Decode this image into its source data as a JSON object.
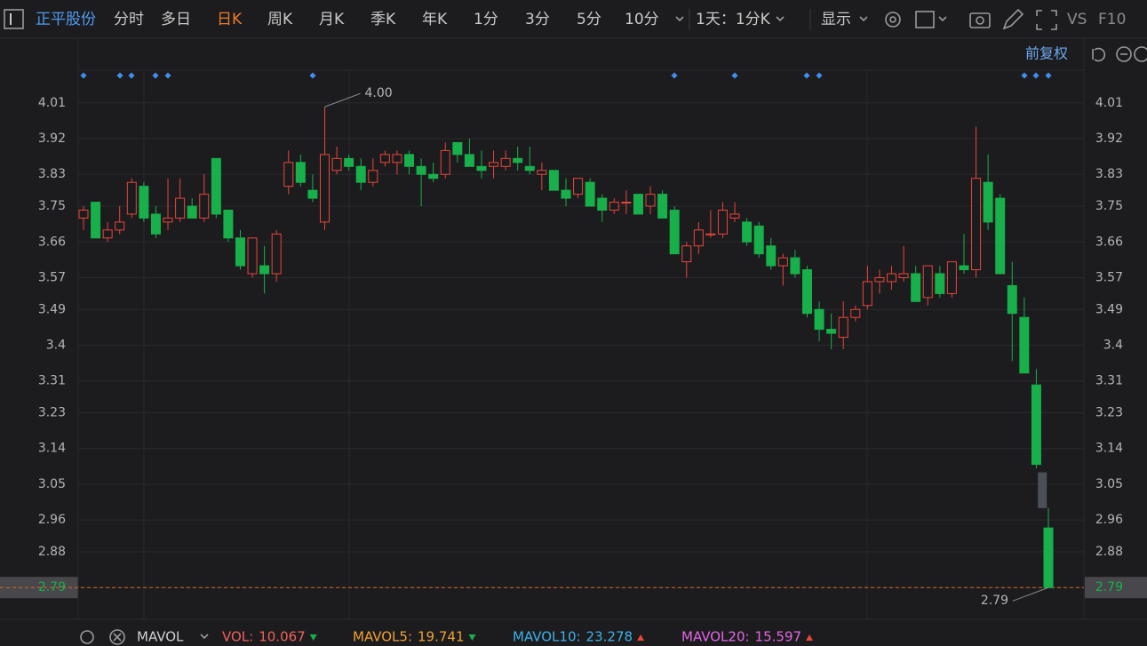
{
  "toolbar": {
    "stock_name": "正平股份",
    "items": [
      "分时",
      "多日",
      "日K",
      "周K",
      "月K",
      "季K",
      "年K",
      "1分",
      "3分",
      "5分",
      "10分"
    ],
    "active_index": 2,
    "period": "1天：1分K",
    "display": "显示",
    "vs": "VS",
    "f10": "F10",
    "adjust": "前复权"
  },
  "chart_data": {
    "type": "candlestick",
    "categories": [
      null,
      null,
      null,
      null,
      null,
      null,
      null,
      null,
      null,
      null,
      null,
      null,
      null,
      null,
      null,
      null,
      null,
      null,
      null,
      null,
      null,
      null,
      null,
      null,
      null,
      null,
      null,
      null,
      null,
      null,
      null,
      null,
      null,
      null,
      null,
      null,
      null,
      null,
      null,
      null,
      null,
      null,
      null,
      null,
      null,
      null,
      null,
      null,
      null,
      null,
      null,
      null,
      null,
      null,
      null,
      null,
      null,
      null,
      null,
      null,
      null,
      null,
      null,
      null,
      null,
      null,
      null,
      null,
      null,
      null,
      null,
      null,
      null,
      null,
      null,
      null,
      null,
      null,
      null,
      null,
      null
    ],
    "open": [
      3.72,
      3.76,
      3.67,
      3.69,
      3.73,
      3.8,
      3.73,
      3.71,
      3.72,
      3.75,
      3.72,
      3.87,
      3.74,
      3.67,
      3.58,
      3.6,
      3.58,
      3.8,
      3.86,
      3.79,
      3.71,
      3.84,
      3.87,
      3.85,
      3.81,
      3.86,
      3.86,
      3.88,
      3.85,
      3.83,
      3.83,
      3.91,
      3.88,
      3.85,
      3.85,
      3.85,
      3.87,
      3.85,
      3.83,
      3.84,
      3.79,
      3.78,
      3.81,
      3.77,
      3.74,
      3.76,
      3.78,
      3.75,
      3.78,
      3.74,
      3.61,
      3.65,
      3.68,
      3.68,
      3.72,
      3.71,
      3.7,
      3.65,
      3.6,
      3.62,
      3.59,
      3.49,
      3.44,
      3.42,
      3.47,
      3.5,
      3.56,
      3.56,
      3.57,
      3.58,
      3.52,
      3.58,
      3.53,
      3.6,
      3.59,
      3.81,
      3.77,
      3.55,
      3.47,
      3.3,
      2.94
    ],
    "high": [
      3.75,
      3.76,
      3.71,
      3.75,
      3.82,
      3.81,
      3.75,
      3.82,
      3.82,
      3.77,
      3.83,
      3.87,
      3.74,
      3.69,
      3.67,
      3.65,
      3.69,
      3.89,
      3.88,
      3.83,
      4.0,
      3.9,
      3.88,
      3.87,
      3.87,
      3.89,
      3.89,
      3.89,
      3.87,
      3.86,
      3.91,
      3.91,
      3.92,
      3.89,
      3.89,
      3.89,
      3.9,
      3.9,
      3.86,
      3.84,
      3.82,
      3.82,
      3.82,
      3.78,
      3.77,
      3.79,
      3.78,
      3.8,
      3.79,
      3.75,
      3.66,
      3.71,
      3.74,
      3.76,
      3.76,
      3.72,
      3.71,
      3.67,
      3.63,
      3.64,
      3.6,
      3.51,
      3.48,
      3.51,
      3.5,
      3.6,
      3.59,
      3.6,
      3.65,
      3.6,
      3.6,
      3.6,
      3.61,
      3.68,
      3.95,
      3.88,
      3.78,
      3.61,
      3.52,
      3.34,
      2.99
    ],
    "low": [
      3.69,
      3.67,
      3.66,
      3.68,
      3.72,
      3.71,
      3.67,
      3.69,
      3.71,
      3.72,
      3.71,
      3.72,
      3.66,
      3.59,
      3.57,
      3.53,
      3.56,
      3.78,
      3.8,
      3.76,
      3.69,
      3.83,
      3.84,
      3.79,
      3.8,
      3.85,
      3.83,
      3.83,
      3.75,
      3.81,
      3.82,
      3.86,
      3.85,
      3.82,
      3.82,
      3.84,
      3.84,
      3.83,
      3.79,
      3.79,
      3.75,
      3.77,
      3.75,
      3.71,
      3.73,
      3.73,
      3.73,
      3.73,
      3.72,
      3.63,
      3.57,
      3.63,
      3.67,
      3.67,
      3.71,
      3.65,
      3.62,
      3.59,
      3.55,
      3.57,
      3.47,
      3.41,
      3.39,
      3.39,
      3.46,
      3.49,
      3.53,
      3.54,
      3.56,
      3.51,
      3.5,
      3.52,
      3.52,
      3.58,
      3.57,
      3.69,
      3.58,
      3.36,
      3.33,
      3.09,
      2.79
    ],
    "close": [
      3.74,
      3.67,
      3.69,
      3.71,
      3.81,
      3.72,
      3.68,
      3.72,
      3.77,
      3.72,
      3.78,
      3.73,
      3.67,
      3.6,
      3.67,
      3.58,
      3.68,
      3.86,
      3.81,
      3.77,
      3.88,
      3.87,
      3.85,
      3.81,
      3.84,
      3.88,
      3.88,
      3.85,
      3.83,
      3.82,
      3.89,
      3.88,
      3.85,
      3.84,
      3.86,
      3.87,
      3.86,
      3.84,
      3.84,
      3.79,
      3.77,
      3.82,
      3.75,
      3.74,
      3.76,
      3.76,
      3.73,
      3.78,
      3.72,
      3.63,
      3.65,
      3.69,
      3.68,
      3.74,
      3.73,
      3.66,
      3.63,
      3.6,
      3.62,
      3.58,
      3.48,
      3.44,
      3.43,
      3.47,
      3.49,
      3.56,
      3.57,
      3.58,
      3.58,
      3.51,
      3.6,
      3.53,
      3.61,
      3.59,
      3.82,
      3.71,
      3.58,
      3.48,
      3.33,
      3.1,
      2.79
    ],
    "up_color": "#e8453c",
    "down_color": "#17b04b",
    "gap_color": "#4b5058",
    "gap_range": [
      3.08,
      2.99
    ],
    "current_price": 2.79,
    "annotations": [
      {
        "value": 4.0,
        "label": "4.00"
      },
      {
        "value": 2.79,
        "label": "2.79"
      }
    ],
    "ylim": [
      2.71,
      4.09
    ],
    "yticks": [
      4.01,
      3.92,
      3.83,
      3.75,
      3.66,
      3.57,
      3.49,
      3.4,
      3.31,
      3.23,
      3.14,
      3.05,
      2.96,
      2.88,
      2.79
    ],
    "grid": true
  },
  "indicator_bar": {
    "name": "MAVOL",
    "items": [
      {
        "label": "VOL:",
        "value": 10.067,
        "color": "#f0605a",
        "trend": "down"
      },
      {
        "label": "MAVOL5:",
        "value": 19.741,
        "color": "#f0a232",
        "trend": "down"
      },
      {
        "label": "MAVOL10:",
        "value": 23.278,
        "color": "#3fb1ea",
        "trend": "up"
      },
      {
        "label": "MAVOL20:",
        "value": 15.597,
        "color": "#e466e4",
        "trend": "up"
      }
    ]
  }
}
